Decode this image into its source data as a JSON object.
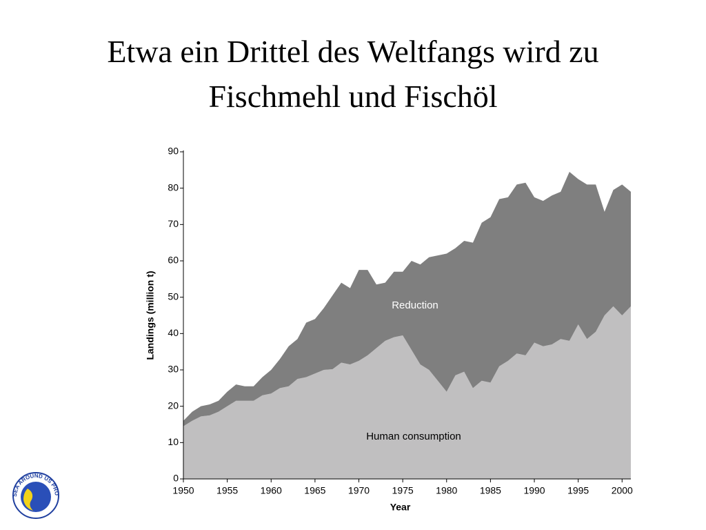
{
  "chart_data": {
    "type": "stacked_area",
    "title": [
      "Etwa ein Drittel des Weltfangs wird zu",
      "Fischmehl und Fischöl"
    ],
    "x_label": "Year",
    "y_label": "Landings (million t)",
    "x": [
      1950,
      1951,
      1952,
      1953,
      1954,
      1955,
      1956,
      1957,
      1958,
      1959,
      1960,
      1961,
      1962,
      1963,
      1964,
      1965,
      1966,
      1967,
      1968,
      1969,
      1970,
      1971,
      1972,
      1973,
      1974,
      1975,
      1976,
      1977,
      1978,
      1979,
      1980,
      1981,
      1982,
      1983,
      1984,
      1985,
      1986,
      1987,
      1988,
      1989,
      1990,
      1991,
      1992,
      1993,
      1994,
      1995,
      1996,
      1997,
      1998,
      1999,
      2000,
      2001
    ],
    "series": [
      {
        "name": "Human consumption",
        "color": "#c0bfc0",
        "values": [
          14.5,
          16,
          17.2,
          17.5,
          18.5,
          20,
          21.5,
          21.5,
          21.5,
          23,
          23.5,
          25,
          25.5,
          27.5,
          28,
          29,
          30,
          30.2,
          32,
          31.5,
          32.5,
          34,
          36,
          38,
          39,
          39.5,
          35.5,
          31.5,
          30,
          27,
          24,
          28.5,
          29.5,
          25,
          27,
          26.5,
          31,
          32.5,
          34.5,
          34,
          37.5,
          36.5,
          37,
          38.5,
          38,
          42.5,
          38.5,
          40.5,
          45,
          47.5,
          45,
          47.5
        ]
      },
      {
        "name": "Reduction",
        "color": "#7f7f7f",
        "values": [
          1.5,
          2.5,
          2.8,
          3,
          3,
          4,
          4.5,
          4,
          4,
          5,
          6.5,
          8,
          11,
          11,
          15,
          15,
          17,
          20.3,
          22,
          21,
          25,
          23.5,
          17.5,
          16,
          18,
          17.5,
          24.5,
          27.5,
          31,
          34.5,
          38,
          35,
          36,
          40,
          43.5,
          45.5,
          46,
          45,
          46.5,
          47.5,
          40,
          40,
          41,
          40.5,
          46.5,
          40,
          42.5,
          40.5,
          28.5,
          32,
          36,
          31.5
        ]
      }
    ],
    "xlim": [
      1950,
      2001
    ],
    "xticks": [
      1950,
      1955,
      1960,
      1965,
      1970,
      1975,
      1980,
      1985,
      1990,
      1995,
      2000
    ],
    "ylim": [
      0,
      90
    ],
    "yticks": [
      0,
      10,
      20,
      30,
      40,
      50,
      60,
      70,
      80,
      90
    ]
  },
  "logo": {
    "text": "SEA AROUND US PROJECT"
  }
}
